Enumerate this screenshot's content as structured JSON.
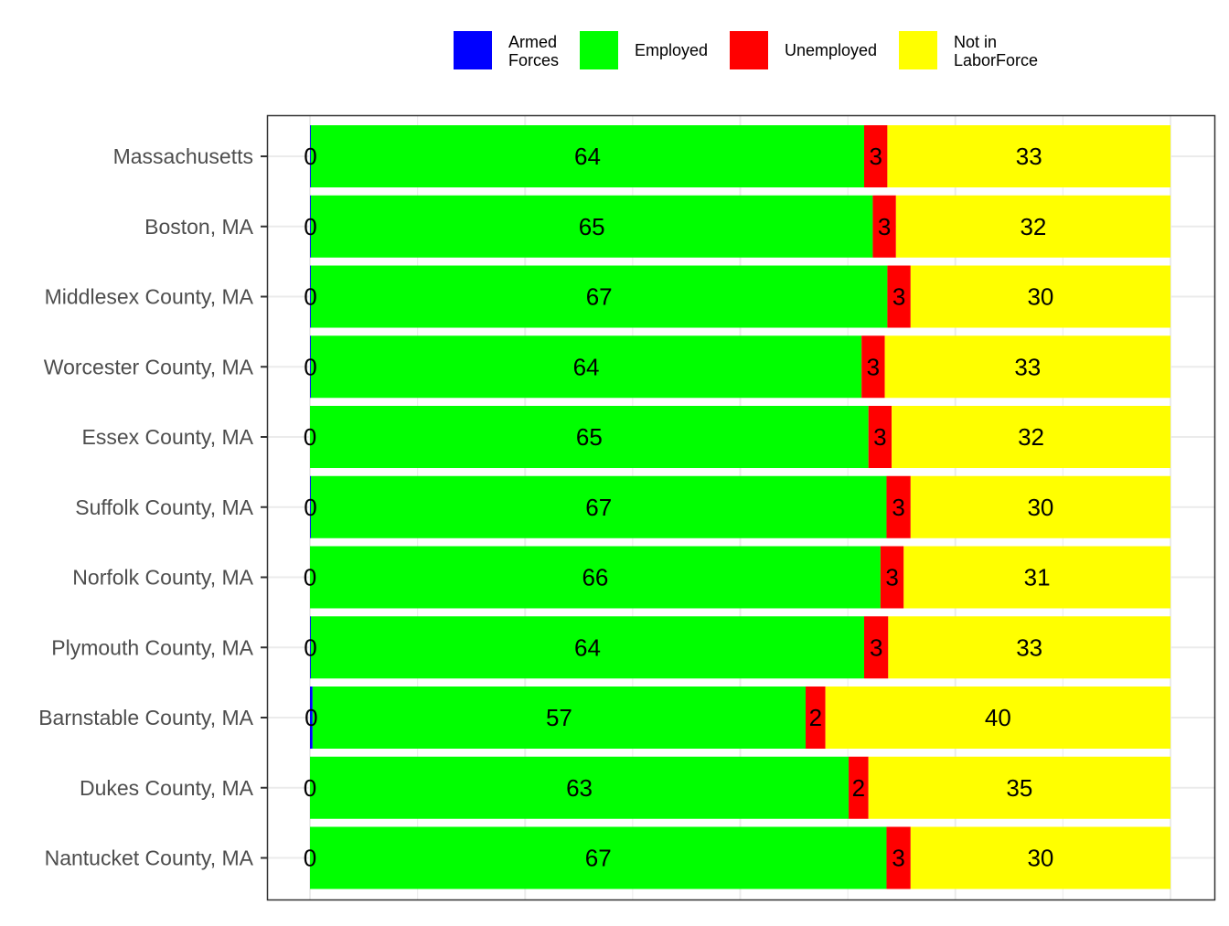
{
  "chart_data": {
    "type": "bar",
    "orientation": "horizontal",
    "stacked": true,
    "title": "",
    "xlabel": "",
    "ylabel": "",
    "xlim": [
      0,
      100
    ],
    "grid": true,
    "legend_position": "top",
    "categories": [
      "Massachusetts",
      "Boston, MA",
      "Middlesex County, MA",
      "Worcester County, MA",
      "Essex County, MA",
      "Suffolk County, MA",
      "Norfolk County, MA",
      "Plymouth County, MA",
      "Barnstable County, MA",
      "Dukes County, MA",
      "Nantucket County, MA"
    ],
    "series": [
      {
        "name": "Armed\nForces",
        "color": "#0000ff",
        "values": [
          0.1,
          0.1,
          0.1,
          0.1,
          0,
          0.1,
          0,
          0.1,
          0.3,
          0,
          0
        ],
        "labels": [
          "0",
          "0",
          "0",
          "0",
          "0",
          "0",
          "0",
          "0",
          "0",
          "0",
          "0"
        ]
      },
      {
        "name": "Employed",
        "color": "#00ff00",
        "values": [
          64.3,
          65.3,
          67,
          64,
          64.9,
          66.9,
          66.3,
          64.3,
          57.3,
          62.6,
          67
        ],
        "labels": [
          "64",
          "65",
          "67",
          "64",
          "65",
          "67",
          "66",
          "64",
          "57",
          "63",
          "67"
        ]
      },
      {
        "name": "Unemployed",
        "color": "#ff0000",
        "values": [
          2.7,
          2.7,
          2.7,
          2.7,
          2.7,
          2.8,
          2.7,
          2.8,
          2.3,
          2.3,
          2.8
        ],
        "labels": [
          "3",
          "3",
          "3",
          "3",
          "3",
          "3",
          "3",
          "3",
          "2",
          "2",
          "3"
        ]
      },
      {
        "name": "Not in\nLaborForce",
        "color": "#ffff00",
        "values": [
          32.9,
          31.9,
          30.2,
          33.2,
          32.4,
          30.2,
          31,
          32.8,
          40.1,
          35.1,
          30.2
        ],
        "labels": [
          "33",
          "32",
          "30",
          "33",
          "32",
          "30",
          "31",
          "33",
          "40",
          "35",
          "30"
        ]
      }
    ]
  }
}
